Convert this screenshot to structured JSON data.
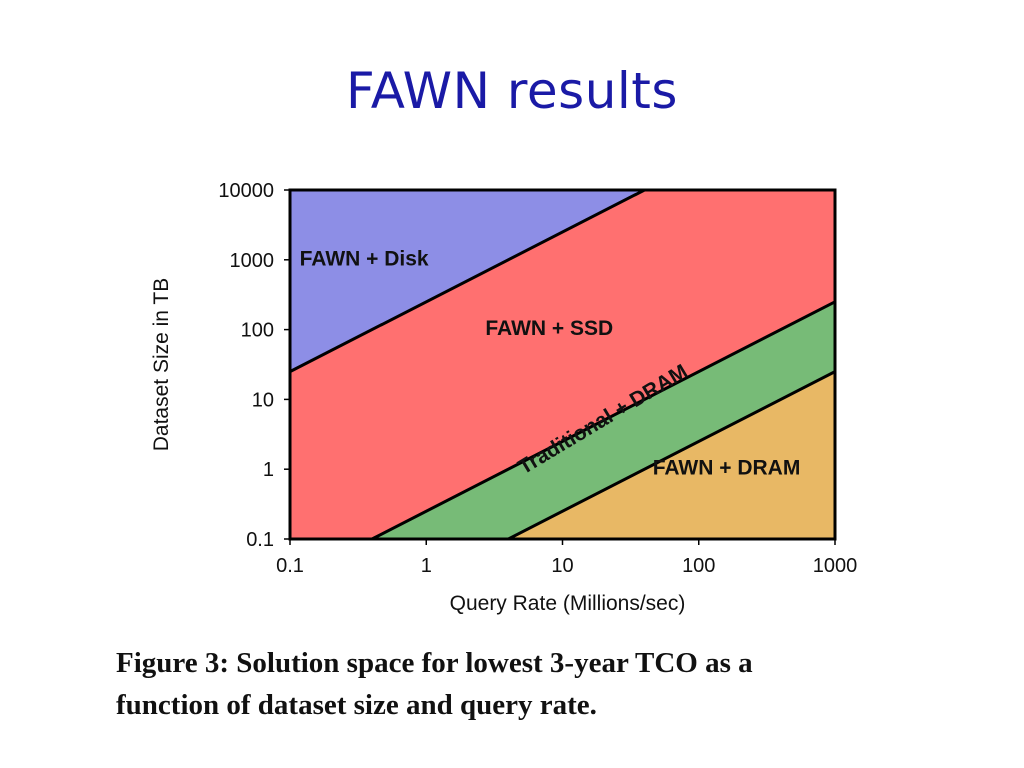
{
  "slide": {
    "title": "FAWN results"
  },
  "caption": {
    "line1": "Figure 3:  Solution space for lowest 3-year TCO as a",
    "line2": "function of dataset size and query rate."
  },
  "chart_data": {
    "type": "area",
    "title": "",
    "xlabel": "Query Rate (Millions/sec)",
    "ylabel": "Dataset Size in TB",
    "xscale": "log",
    "yscale": "log",
    "xlim": [
      0.1,
      1000
    ],
    "ylim": [
      0.1,
      10000
    ],
    "x_ticks": [
      0.1,
      1,
      10,
      100,
      1000
    ],
    "x_tick_labels": [
      "0.1",
      "1",
      "10",
      "100",
      "1000"
    ],
    "y_ticks": [
      0.1,
      1,
      10,
      100,
      1000,
      10000
    ],
    "y_tick_labels": [
      "0.1",
      "1",
      "10",
      "100",
      "1000",
      "10000"
    ],
    "grid": false,
    "legend": "none",
    "boundaries": [
      {
        "between": [
          "FAWN + Disk",
          "FAWN + SSD"
        ],
        "points": [
          [
            0.1,
            25
          ],
          [
            40,
            10000
          ]
        ]
      },
      {
        "between": [
          "FAWN + SSD",
          "Traditional + DRAM"
        ],
        "points": [
          [
            0.4,
            0.1
          ],
          [
            1000,
            250
          ]
        ]
      },
      {
        "between": [
          "Traditional + DRAM",
          "FAWN + DRAM"
        ],
        "points": [
          [
            4,
            0.1
          ],
          [
            1000,
            25
          ]
        ]
      }
    ],
    "regions": [
      {
        "name": "FAWN + Disk",
        "color": "#8d8ee6",
        "polygon": [
          [
            0.1,
            10000
          ],
          [
            40,
            10000
          ],
          [
            0.1,
            25
          ]
        ],
        "label_at": [
          0.35,
          1000
        ],
        "label_rotation": 0
      },
      {
        "name": "FAWN + SSD",
        "color": "#ff7070",
        "polygon": [
          [
            0.1,
            25
          ],
          [
            40,
            10000
          ],
          [
            1000,
            10000
          ],
          [
            1000,
            250
          ],
          [
            0.4,
            0.1
          ],
          [
            0.1,
            0.1
          ]
        ],
        "label_at": [
          8,
          100
        ],
        "label_rotation": 0
      },
      {
        "name": "Traditional + DRAM",
        "color": "#77bb77",
        "polygon": [
          [
            0.4,
            0.1
          ],
          [
            1000,
            250
          ],
          [
            1000,
            25
          ],
          [
            4,
            0.1
          ]
        ],
        "label_at": [
          20,
          5
        ],
        "label_rotation": -31
      },
      {
        "name": "FAWN + DRAM",
        "color": "#e8b865",
        "polygon": [
          [
            4,
            0.1
          ],
          [
            1000,
            25
          ],
          [
            1000,
            0.1
          ]
        ],
        "label_at": [
          160,
          1
        ],
        "label_rotation": 0
      }
    ]
  }
}
